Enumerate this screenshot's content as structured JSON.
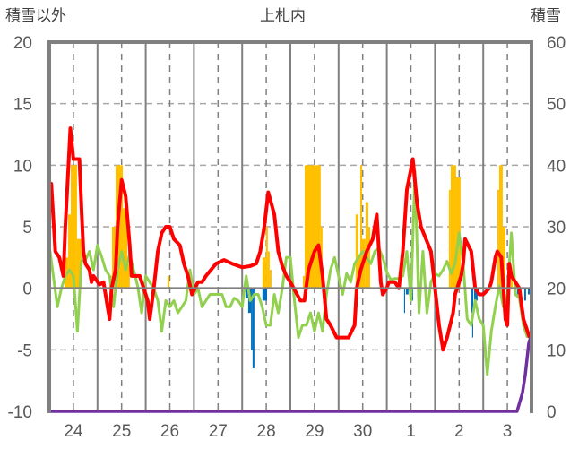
{
  "chart_data": {
    "type": "bar+line",
    "title": "上札内",
    "left_axis_label": "積雪以外",
    "right_axis_label": "積雪",
    "ylim_left": [
      -10,
      20
    ],
    "ylim_right": [
      0,
      60
    ],
    "left_ticks": [
      "20",
      "15",
      "10",
      "5",
      "0",
      "-5",
      "-10"
    ],
    "right_ticks": [
      "60",
      "50",
      "40",
      "30",
      "20",
      "10",
      "0"
    ],
    "x_unit": "hours from start of day 24",
    "x_range_hours": [
      0,
      240
    ],
    "x_tick_labels": [
      "24",
      "25",
      "26",
      "27",
      "28",
      "29",
      "30",
      "1",
      "2",
      "3"
    ],
    "grid": true,
    "colors": {
      "red": "#ff0000",
      "green": "#92d050",
      "orange": "#ffc000",
      "blue": "#0070c0",
      "purple": "#7030a0",
      "axis": "#808080"
    },
    "series": [
      {
        "name": "orange_bars",
        "kind": "bar",
        "axis": "left",
        "color": "#ffc000",
        "bars": [
          [
            7.6,
            9.4,
            2.5
          ],
          [
            9.4,
            10.7,
            6
          ],
          [
            10.7,
            13.8,
            10
          ],
          [
            13.8,
            16.1,
            4
          ],
          [
            29.9,
            31.2,
            1
          ],
          [
            31.2,
            33,
            5
          ],
          [
            33,
            36.6,
            10
          ],
          [
            36.6,
            38.8,
            6.5
          ],
          [
            38.8,
            40.1,
            2
          ],
          [
            58.9,
            59.8,
            1
          ],
          [
            106.1,
            107.9,
            2.5
          ],
          [
            107.9,
            108.8,
            5
          ],
          [
            108.8,
            109.7,
            3
          ],
          [
            109.7,
            110.6,
            1.5
          ],
          [
            126.2,
            127.1,
            1
          ],
          [
            127.1,
            135.1,
            10
          ],
          [
            135.1,
            136,
            5
          ],
          [
            152.5,
            153.9,
            6
          ],
          [
            153.9,
            154.8,
            2.5
          ],
          [
            154.8,
            155.7,
            10
          ],
          [
            155.7,
            157.4,
            4
          ],
          [
            157.4,
            158.8,
            7
          ],
          [
            158.8,
            159.7,
            5
          ],
          [
            198.9,
            199.8,
            8
          ],
          [
            199.8,
            202.5,
            10
          ],
          [
            202.5,
            204.7,
            9
          ],
          [
            223,
            223.9,
            8
          ],
          [
            223.9,
            225.7,
            10
          ],
          [
            225.7,
            227,
            5
          ],
          [
            229.7,
            230.6,
            1
          ]
        ]
      },
      {
        "name": "blue_bars",
        "kind": "bar",
        "axis": "left",
        "color": "#0070c0",
        "bars": [
          [
            97.7,
            99,
            -0.8
          ],
          [
            99,
            100.4,
            -2
          ],
          [
            100.4,
            101.2,
            -5
          ],
          [
            101.2,
            102.1,
            -6.5
          ],
          [
            102.1,
            102.6,
            -1
          ],
          [
            106.1,
            108.4,
            -1
          ],
          [
            176.6,
            177.1,
            -2
          ],
          [
            177.5,
            178.8,
            -0.5
          ],
          [
            180.2,
            181.1,
            -1
          ],
          [
            210.1,
            210.5,
            -2
          ],
          [
            210.5,
            211,
            -4
          ],
          [
            211.4,
            213.2,
            -1
          ],
          [
            213.2,
            214.1,
            -0.5
          ],
          [
            232.8,
            234.6,
            -0.5
          ],
          [
            236.4,
            237.3,
            -1
          ],
          [
            238.2,
            239.1,
            -0.5
          ]
        ]
      },
      {
        "name": "green_line",
        "kind": "line",
        "axis": "left",
        "color": "#92d050",
        "step_hours": 2,
        "values": [
          3.5,
          1,
          -1.5,
          0,
          1,
          1.5,
          1,
          -3.5,
          2.2,
          2.3,
          3,
          1.5,
          3.5,
          2.6,
          1.5,
          1,
          -1.5,
          1.5,
          3,
          1.5,
          2.8,
          1.5,
          0.2,
          -2,
          1,
          0.5,
          0,
          -1,
          -3.5,
          -1,
          -1.5,
          -1,
          -2,
          -1.5,
          -1,
          1.5,
          -0.5,
          0,
          -1.5,
          -1,
          -0.5,
          -0.5,
          -0.5,
          -0.5,
          -1.5,
          -1.5,
          -0.8,
          -1,
          -1.5,
          1,
          -1,
          -0.5,
          -0.5,
          -1.5,
          -3,
          -3,
          -0.5,
          -2,
          0,
          2.5,
          2.5,
          -1,
          -4,
          -3,
          -3,
          -2,
          -3.5,
          -2,
          -3.5,
          -0.5,
          1.5,
          2.5,
          1,
          -0.5,
          1.2,
          0.5,
          2,
          2.5,
          3,
          2.5,
          2,
          3,
          3.3,
          2.5,
          1.3,
          0.7,
          0.8,
          0.8,
          1,
          3,
          -1,
          9.5,
          -2,
          3,
          -2,
          0.5,
          1.2,
          1,
          1.5,
          2.2,
          1.2,
          2,
          4.5,
          2,
          -2.5,
          -3,
          -1,
          -2.5,
          -3,
          -7,
          -3.5,
          -1.5,
          0.2,
          -1.5,
          -0.5,
          4.5,
          -0.5,
          -0.8,
          -3,
          -4
        ]
      },
      {
        "name": "red_line",
        "kind": "line",
        "axis": "left",
        "color": "#ff0000",
        "points": [
          [
            0,
            8
          ],
          [
            1,
            8.5
          ],
          [
            3,
            3
          ],
          [
            5,
            2.5
          ],
          [
            7,
            1
          ],
          [
            8,
            5
          ],
          [
            10.5,
            13
          ],
          [
            12,
            10.5
          ],
          [
            15,
            10.5
          ],
          [
            16,
            6.5
          ],
          [
            17,
            3
          ],
          [
            18,
            2
          ],
          [
            20,
            1.5
          ],
          [
            21,
            0.5
          ],
          [
            22,
            1
          ],
          [
            25,
            0.3
          ],
          [
            27,
            0.5
          ],
          [
            29,
            -1.5
          ],
          [
            30,
            -2.5
          ],
          [
            31,
            0
          ],
          [
            33,
            1.5
          ],
          [
            34,
            5
          ],
          [
            36,
            8.8
          ],
          [
            38,
            7.5
          ],
          [
            40,
            3.5
          ],
          [
            41,
            1
          ],
          [
            43,
            1
          ],
          [
            45,
            1
          ],
          [
            47,
            0
          ],
          [
            49,
            -1
          ],
          [
            50,
            -2.5
          ],
          [
            52,
            0
          ],
          [
            54,
            3
          ],
          [
            56,
            4.5
          ],
          [
            58,
            5
          ],
          [
            60,
            5
          ],
          [
            62,
            4
          ],
          [
            65,
            3.5
          ],
          [
            67,
            2
          ],
          [
            69,
            1
          ],
          [
            71,
            -0.5
          ],
          [
            74,
            0.5
          ],
          [
            76,
            0.5
          ],
          [
            78,
            1
          ],
          [
            83,
            2
          ],
          [
            87,
            2.3
          ],
          [
            91,
            2
          ],
          [
            96,
            1.7
          ],
          [
            100,
            1.8
          ],
          [
            103,
            2
          ],
          [
            105,
            3
          ],
          [
            107,
            5
          ],
          [
            109,
            7.8
          ],
          [
            112,
            6
          ],
          [
            114,
            3
          ],
          [
            116,
            1.8
          ],
          [
            118,
            1
          ],
          [
            120,
            0.5
          ],
          [
            125,
            -1
          ],
          [
            127,
            -1
          ],
          [
            129,
            1.5
          ],
          [
            132,
            3
          ],
          [
            134,
            3.5
          ],
          [
            136,
            1
          ],
          [
            138,
            -2.5
          ],
          [
            140,
            -3
          ],
          [
            143,
            -4
          ],
          [
            145,
            -4
          ],
          [
            149,
            -4
          ],
          [
            152,
            -3
          ],
          [
            153,
            0
          ],
          [
            155,
            1.5
          ],
          [
            156,
            2
          ],
          [
            158,
            3
          ],
          [
            161,
            4
          ],
          [
            163,
            6
          ],
          [
            165,
            0.5
          ],
          [
            166,
            -0.5
          ],
          [
            168,
            0
          ],
          [
            169,
            0.5
          ],
          [
            172,
            0.5
          ],
          [
            174,
            0
          ],
          [
            176,
            3
          ],
          [
            178,
            8
          ],
          [
            181,
            10.5
          ],
          [
            183,
            7
          ],
          [
            185,
            5
          ],
          [
            187,
            4.2
          ],
          [
            190,
            3
          ],
          [
            192,
            0
          ],
          [
            194,
            -3
          ],
          [
            196,
            -5
          ],
          [
            198,
            -4
          ],
          [
            201,
            -2
          ],
          [
            202,
            -0.5
          ],
          [
            204,
            0.5
          ],
          [
            205,
            1
          ],
          [
            206,
            2
          ],
          [
            207,
            4
          ],
          [
            210,
            3
          ],
          [
            212,
            0
          ],
          [
            214,
            -0.5
          ],
          [
            216,
            -0.5
          ],
          [
            219,
            0
          ],
          [
            220,
            0.5
          ],
          [
            222,
            2.5
          ],
          [
            223,
            3
          ],
          [
            225,
            2.5
          ],
          [
            227,
            -2.5
          ],
          [
            228,
            -3
          ],
          [
            229,
            2
          ],
          [
            230,
            1
          ],
          [
            232,
            0.5
          ],
          [
            234,
            0
          ],
          [
            236,
            -2.5
          ],
          [
            239,
            -4
          ]
        ]
      },
      {
        "name": "snow_depth",
        "kind": "line",
        "axis": "right",
        "color": "#7030a0",
        "points": [
          [
            0,
            0
          ],
          [
            232.8,
            0
          ],
          [
            235.5,
            3
          ],
          [
            236.9,
            6
          ],
          [
            238.6,
            11
          ],
          [
            239.5,
            12
          ]
        ]
      }
    ]
  }
}
